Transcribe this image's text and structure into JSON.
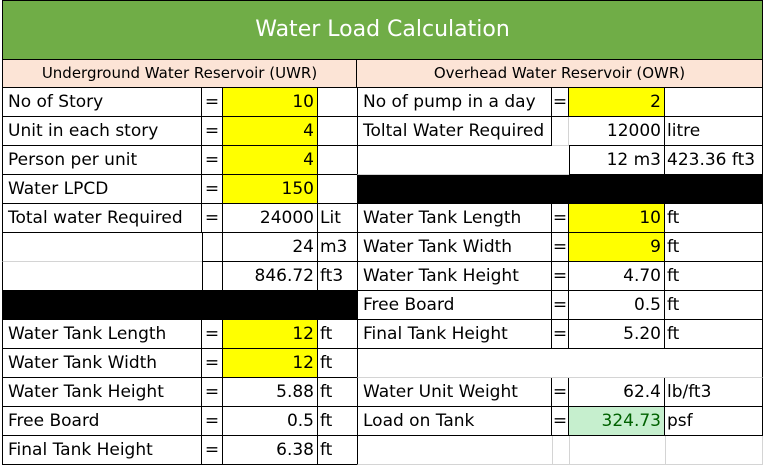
{
  "title": "Water Load Calculation",
  "uwr": {
    "header": "Underground Water Reservoir (UWR)",
    "no_of_story": {
      "label": "No of Story",
      "eq": "=",
      "value": "10"
    },
    "unit_each_story": {
      "label": "Unit in each story",
      "eq": "=",
      "value": "4"
    },
    "person_per_unit": {
      "label": "Person per unit",
      "eq": "=",
      "value": "4"
    },
    "water_lpcd": {
      "label": "Water LPCD",
      "eq": "=",
      "value": "150"
    },
    "total_water": {
      "label": "Total water Required",
      "eq": "=",
      "value_lit": "24000",
      "unit_lit": "Lit",
      "value_m3": "24",
      "unit_m3": "m3",
      "value_ft3": "846.72",
      "unit_ft3": "ft3"
    },
    "tank_length": {
      "label": "Water Tank Length",
      "eq": "=",
      "value": "12",
      "unit": "ft"
    },
    "tank_width": {
      "label": "Water Tank Width",
      "eq": "=",
      "value": "12",
      "unit": "ft"
    },
    "tank_height": {
      "label": "Water Tank Height",
      "eq": "=",
      "value": "5.88",
      "unit": "ft"
    },
    "free_board": {
      "label": "Free Board",
      "eq": "=",
      "value": "0.5",
      "unit": "ft"
    },
    "final_height": {
      "label": "Final Tank Height",
      "eq": "=",
      "value": "6.38",
      "unit": "ft"
    }
  },
  "owr": {
    "header": "Overhead Water Reservoir (OWR)",
    "pump_per_day": {
      "label": "No of pump in a day",
      "eq": "=",
      "value": "2"
    },
    "total_water": {
      "label": "Toltal Water Required",
      "value_litre": "12000",
      "unit_litre": "litre",
      "value_m3": "12",
      "unit_m3": "m3",
      "value_ft3": "423.36",
      "unit_ft3": "ft3"
    },
    "tank_length": {
      "label": "Water Tank Length",
      "eq": "=",
      "value": "10",
      "unit": "ft"
    },
    "tank_width": {
      "label": "Water Tank Width",
      "eq": "=",
      "value": "9",
      "unit": "ft"
    },
    "tank_height": {
      "label": "Water Tank Height",
      "eq": "=",
      "value": "4.70",
      "unit": "ft"
    },
    "free_board": {
      "label": "Free Board",
      "eq": "=",
      "value": "0.5",
      "unit": "ft"
    },
    "final_height": {
      "label": "Final Tank Height",
      "eq": "=",
      "value": "5.20",
      "unit": "ft"
    },
    "unit_weight": {
      "label": "Water Unit Weight",
      "eq": "=",
      "value": "62.4",
      "unit": "lb/ft3"
    },
    "load_on_tank": {
      "label": "Load on Tank",
      "eq": "=",
      "value": "324.73",
      "unit": "psf"
    }
  },
  "colors": {
    "title_bg": "#70ad47",
    "header_bg": "#fce4d6",
    "input_bg": "#ffff00",
    "result_bg": "#c6efce"
  }
}
